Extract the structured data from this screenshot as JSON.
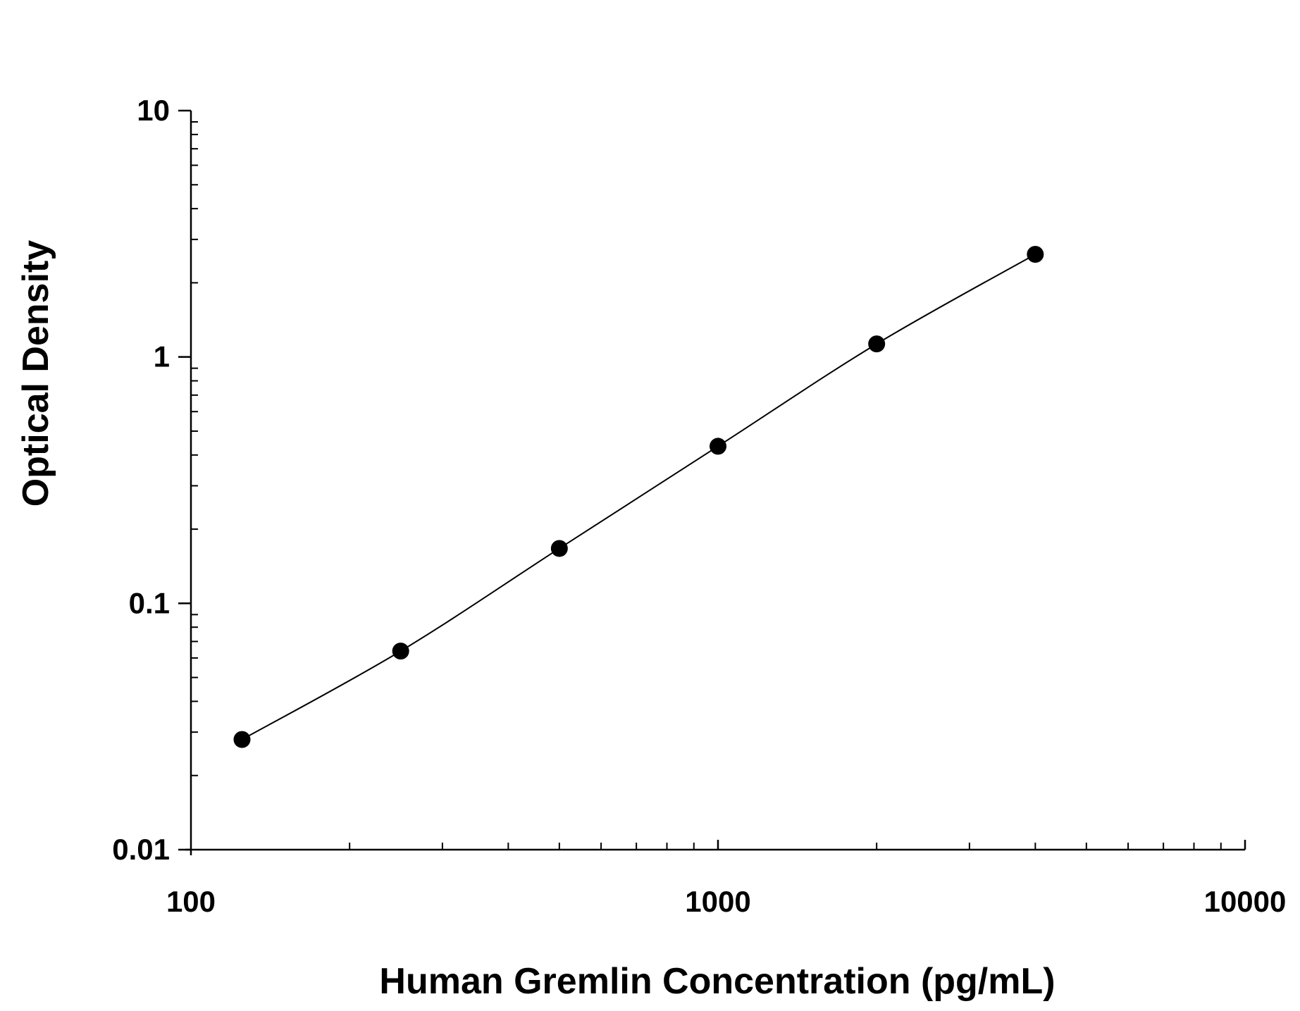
{
  "chart_data": {
    "type": "scatter",
    "title": "",
    "xlabel": "Human Gremlin Concentration (pg/mL)",
    "ylabel": "Optical Density",
    "x_scale": "log",
    "y_scale": "log",
    "xlim": [
      100,
      10000
    ],
    "ylim": [
      0.01,
      10
    ],
    "x_ticks": [
      "100",
      "1000",
      "10000"
    ],
    "y_ticks": [
      "0.01",
      "0.1",
      "1",
      "10"
    ],
    "grid": false,
    "fit_line": true,
    "series": [
      {
        "x": [
          125,
          250,
          500,
          1000,
          2000,
          4000
        ],
        "y": [
          0.028,
          0.064,
          0.167,
          0.434,
          1.13,
          2.61
        ]
      }
    ],
    "colors": {
      "marker": "#000000",
      "line": "#000000"
    }
  }
}
